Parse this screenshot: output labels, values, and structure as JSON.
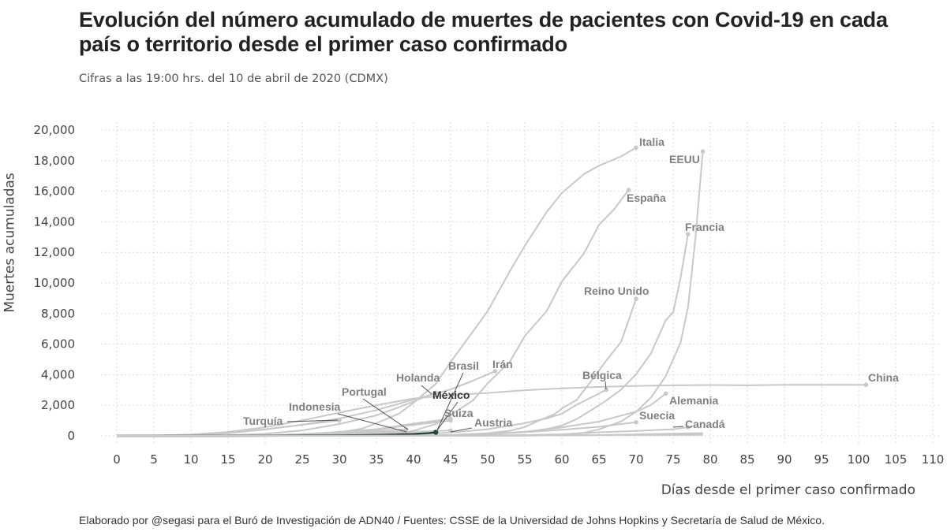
{
  "title": "Evolución del número acumulado de muertes de pacientes con Covid-19 en cada país o territorio desde el primer caso confirmado",
  "subtitle": "Cifras a las 19:00 hrs. del 10 de abril de 2020 (CDMX)",
  "footer": "Elaborado por @segasi para el Buró de Investigación de ADN40 / Fuentes: CSSE de la Universidad de Johns Hopkins y Secretaría de Salud de México.",
  "colors": {
    "highlight": "#1f4a36",
    "series": "#c8c8c8",
    "label": "#808080"
  },
  "chart_data": {
    "type": "line",
    "xlabel": "Días desde el primer caso confirmado",
    "ylabel": "Muertes acumuladas",
    "xlim": [
      0,
      110
    ],
    "ylim": [
      0,
      20000
    ],
    "x_ticks": [
      "0",
      "5",
      "10",
      "15",
      "20",
      "25",
      "30",
      "35",
      "40",
      "45",
      "50",
      "55",
      "60",
      "65",
      "70",
      "75",
      "80",
      "85",
      "90",
      "95",
      "100",
      "105",
      "110"
    ],
    "y_ticks": [
      "0",
      "2,000",
      "4,000",
      "6,000",
      "8,000",
      "10,000",
      "12,000",
      "14,000",
      "16,000",
      "18,000",
      "20,000"
    ],
    "grid": true,
    "series": [
      {
        "name": "Italia",
        "x": [
          0,
          20,
          23,
          25,
          28,
          30,
          33,
          35,
          38,
          40,
          43,
          45,
          48,
          50,
          53,
          55,
          58,
          60,
          63,
          65,
          68,
          70
        ],
        "y": [
          0,
          0,
          7,
          21,
          107,
          233,
          463,
          827,
          1441,
          2158,
          3405,
          4825,
          6820,
          8165,
          10779,
          12428,
          14681,
          15887,
          17127,
          17669,
          18279,
          18849
        ]
      },
      {
        "name": "EEUU",
        "x": [
          0,
          35,
          40,
          45,
          50,
          55,
          58,
          60,
          63,
          65,
          68,
          70,
          72,
          74,
          76,
          77,
          78,
          79
        ],
        "y": [
          0,
          0,
          11,
          22,
          36,
          41,
          57,
          85,
          200,
          427,
          942,
          1578,
          2500,
          3900,
          6100,
          8400,
          12900,
          18600
        ]
      },
      {
        "name": "España",
        "x": [
          0,
          30,
          33,
          35,
          38,
          40,
          43,
          45,
          48,
          50,
          53,
          55,
          58,
          60,
          63,
          65,
          67,
          69
        ],
        "y": [
          0,
          0,
          5,
          28,
          136,
          342,
          767,
          1375,
          2311,
          3434,
          4858,
          6528,
          8189,
          10096,
          11947,
          13798,
          14792,
          16081
        ]
      },
      {
        "name": "Francia",
        "x": [
          0,
          40,
          45,
          50,
          55,
          58,
          60,
          62,
          64,
          66,
          68,
          70,
          72,
          74,
          75,
          76,
          77
        ],
        "y": [
          0,
          2,
          48,
          127,
          264,
          450,
          674,
          1100,
          1696,
          2314,
          3024,
          4032,
          5387,
          7560,
          8078,
          10328,
          13197
        ]
      },
      {
        "name": "Reino Unido",
        "x": [
          0,
          35,
          40,
          45,
          50,
          53,
          55,
          57,
          59,
          60,
          62,
          64,
          66,
          68,
          70
        ],
        "y": [
          0,
          1,
          10,
          55,
          177,
          335,
          578,
          1019,
          1411,
          1789,
          2352,
          3611,
          4934,
          6159,
          8958
        ]
      },
      {
        "name": "Irán",
        "x": [
          0,
          5,
          10,
          15,
          20,
          25,
          30,
          35,
          40,
          45,
          48,
          51
        ],
        "y": [
          0,
          15,
          77,
          194,
          429,
          724,
          1135,
          1685,
          2378,
          3036,
          3603,
          4232
        ]
      },
      {
        "name": "Bélgica",
        "x": [
          0,
          35,
          40,
          45,
          50,
          55,
          58,
          60,
          62,
          64,
          66
        ],
        "y": [
          0,
          10,
          75,
          220,
          431,
          828,
          1143,
          1447,
          2035,
          2523,
          3019
        ]
      },
      {
        "name": "China",
        "x": [
          0,
          5,
          10,
          15,
          20,
          25,
          30,
          35,
          40,
          45,
          50,
          55,
          60,
          65,
          70,
          75,
          80,
          85,
          90,
          95,
          101
        ],
        "y": [
          0,
          17,
          80,
          259,
          563,
          1016,
          1523,
          2004,
          2442,
          2663,
          2803,
          2987,
          3101,
          3203,
          3270,
          3304,
          3326,
          3305,
          3339,
          3340,
          3339
        ]
      },
      {
        "name": "Holanda",
        "x": [
          0,
          10,
          15,
          20,
          25,
          30,
          35,
          38,
          40,
          42,
          43
        ],
        "y": [
          0,
          5,
          43,
          136,
          356,
          771,
          1339,
          1867,
          2248,
          2643,
          2823
        ]
      },
      {
        "name": "Alemania",
        "x": [
          0,
          35,
          40,
          45,
          50,
          55,
          60,
          65,
          70,
          72,
          74
        ],
        "y": [
          0,
          0,
          9,
          28,
          126,
          253,
          555,
          931,
          1584,
          2016,
          2767
        ]
      },
      {
        "name": "Suiza",
        "x": [
          0,
          20,
          25,
          30,
          35,
          40,
          45
        ],
        "y": [
          0,
          33,
          120,
          257,
          432,
          715,
          1002
        ]
      },
      {
        "name": "Turquía",
        "x": [
          0,
          10,
          15,
          20,
          25,
          30
        ],
        "y": [
          0,
          37,
          168,
          425,
          725,
          1006
        ]
      },
      {
        "name": "Brasil",
        "x": [
          0,
          20,
          25,
          30,
          35,
          40,
          45
        ],
        "y": [
          0,
          25,
          77,
          201,
          432,
          800,
          1124
        ]
      },
      {
        "name": "Suecia",
        "x": [
          0,
          35,
          40,
          45,
          50,
          55,
          60,
          65,
          70
        ],
        "y": [
          0,
          1,
          10,
          36,
          102,
          239,
          401,
          591,
          887
        ]
      },
      {
        "name": "Canadá",
        "x": [
          0,
          40,
          45,
          50,
          55,
          60,
          65,
          70,
          75,
          77
        ],
        "y": [
          0,
          1,
          8,
          24,
          54,
          101,
          233,
          323,
          435,
          565
        ]
      },
      {
        "name": "Austria",
        "x": [
          0,
          20,
          25,
          30,
          35,
          40,
          45
        ],
        "y": [
          0,
          12,
          49,
          108,
          168,
          273,
          350
        ]
      },
      {
        "name": "Portugal",
        "x": [
          0,
          20,
          25,
          30,
          35,
          39
        ],
        "y": [
          0,
          23,
          100,
          209,
          345,
          435
        ]
      },
      {
        "name": "Indonesia",
        "x": [
          0,
          15,
          20,
          25,
          30,
          35,
          39
        ],
        "y": [
          0,
          5,
          32,
          114,
          198,
          240,
          306
        ]
      },
      {
        "name": "México",
        "x": [
          0,
          10,
          15,
          20,
          25,
          30,
          35,
          38,
          40,
          42,
          43
        ],
        "y": [
          0,
          0,
          2,
          5,
          16,
          29,
          60,
          94,
          125,
          174,
          233
        ]
      }
    ],
    "highlight": "México"
  }
}
